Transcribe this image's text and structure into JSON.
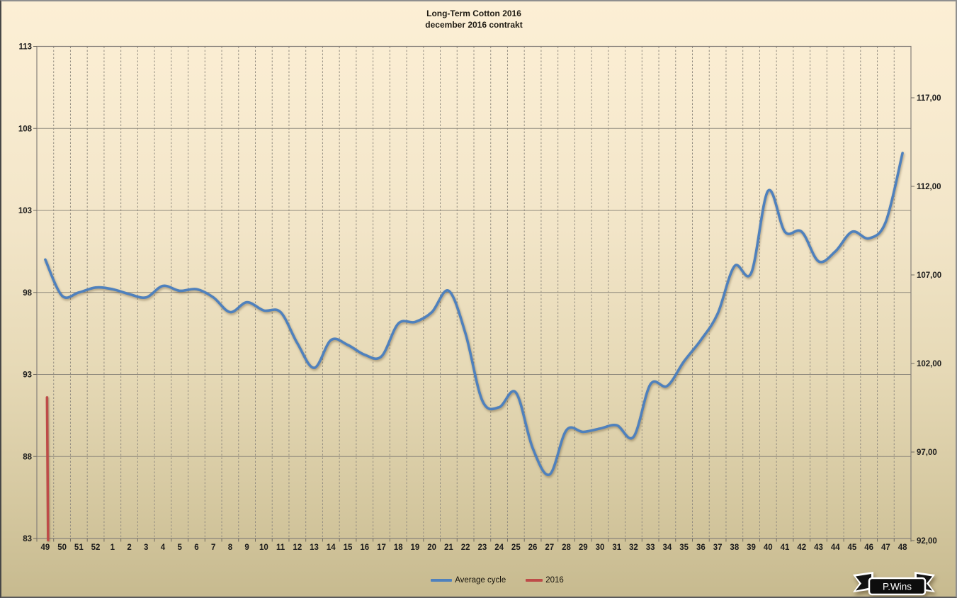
{
  "title": {
    "line1": "Long-Term Cotton 2016",
    "line2": "december 2016 contrakt"
  },
  "legend": [
    {
      "label": "Average cycle",
      "color": "#4F81BD"
    },
    {
      "label": "2016",
      "color": "#BE4B48"
    }
  ],
  "logo": {
    "text": "P.Wins"
  },
  "chart_data": {
    "type": "line",
    "title": "Long-Term Cotton 2016",
    "subtitle": "december 2016 contrakt",
    "categories": [
      "49",
      "50",
      "51",
      "52",
      "1",
      "2",
      "3",
      "4",
      "5",
      "6",
      "7",
      "8",
      "9",
      "10",
      "11",
      "12",
      "13",
      "14",
      "15",
      "16",
      "17",
      "18",
      "19",
      "20",
      "21",
      "22",
      "23",
      "24",
      "25",
      "26",
      "27",
      "28",
      "29",
      "30",
      "31",
      "32",
      "33",
      "34",
      "35",
      "36",
      "37",
      "38",
      "39",
      "40",
      "41",
      "42",
      "43",
      "44",
      "45",
      "46",
      "47",
      "48"
    ],
    "series": [
      {
        "name": "Average cycle",
        "color": "#4F81BD",
        "style": "smooth-line",
        "axis": "left",
        "values": [
          100.0,
          97.8,
          98.0,
          98.3,
          98.2,
          97.9,
          97.7,
          98.4,
          98.1,
          98.2,
          97.7,
          96.8,
          97.4,
          96.9,
          96.8,
          94.9,
          93.4,
          95.1,
          94.8,
          94.2,
          94.1,
          96.1,
          96.2,
          96.8,
          98.1,
          95.5,
          91.4,
          91.0,
          91.9,
          88.5,
          86.9,
          89.6,
          89.5,
          89.7,
          89.9,
          89.2,
          92.4,
          92.3,
          93.8,
          95.1,
          96.7,
          99.6,
          99.2,
          104.2,
          101.7,
          101.7,
          99.9,
          100.5,
          101.7,
          101.3,
          102.3,
          106.5
        ]
      },
      {
        "name": "2016",
        "color": "#BE4B48",
        "style": "vertical-segment",
        "axis": "left",
        "at_category": "49",
        "segment_values": [
          91.6,
          82.9
        ]
      }
    ],
    "left_axis": {
      "min": 83,
      "max": 113,
      "step": 5,
      "tick_labels": [
        "83",
        "88",
        "93",
        "98",
        "103",
        "108",
        "113"
      ]
    },
    "right_axis": {
      "min": 92,
      "max": 117,
      "step": 5,
      "tick_labels": [
        "92,00",
        "97,00",
        "102,00",
        "107,00",
        "112,00",
        "117,00"
      ]
    },
    "grid": {
      "vertical": "dashed, one per week boundary",
      "horizontal": "solid, every 5 units of left axis"
    },
    "legend_position": "bottom"
  }
}
